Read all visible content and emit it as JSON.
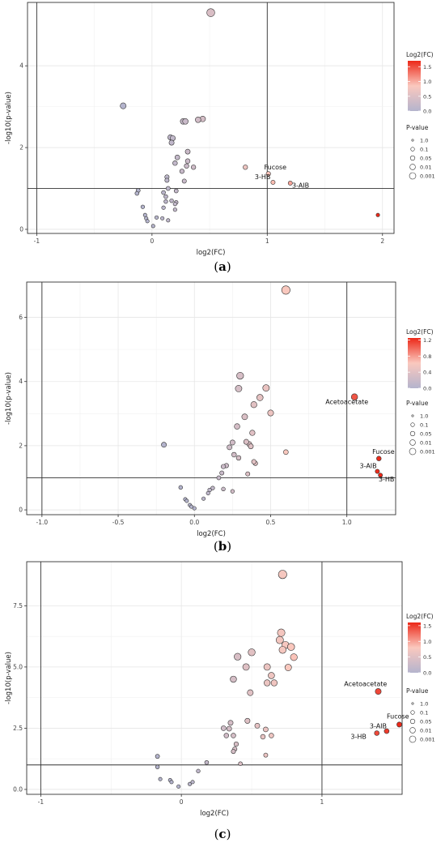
{
  "chart_data": [
    {
      "type": "scatter",
      "panel": "a",
      "caption_open": "(",
      "caption_letter": "a",
      "caption_close": ")",
      "xlabel": "log2(FC)",
      "ylabel": "-log10(p-value)",
      "xlim": [
        -1.08,
        2.1
      ],
      "ylim": [
        -0.1,
        5.55
      ],
      "xticks": [
        -1,
        0,
        1,
        2
      ],
      "xtick_labels": [
        "-1",
        "0",
        "1",
        "2"
      ],
      "yticks": [
        0,
        2,
        4
      ],
      "ytick_labels": [
        "0",
        "2",
        "4"
      ],
      "vlines": [
        -1,
        1
      ],
      "hline": 1,
      "grid": true,
      "color_max": 1.95,
      "colorbar": {
        "title": "Log2(FC)",
        "ticks": [
          0,
          0.5,
          1.0,
          1.5
        ],
        "tick_labels": [
          "0.0",
          "0.5",
          "1.0",
          "1.5"
        ],
        "max": 1.7
      },
      "size_legend": {
        "title": "P-value",
        "labels": [
          "1.0",
          "0.1",
          "0.05",
          "0.01",
          "0.001"
        ]
      },
      "points": [
        {
          "x": 0.51,
          "y": 5.3
        },
        {
          "x": -0.25,
          "y": 3.02
        },
        {
          "x": 0.44,
          "y": 2.7
        },
        {
          "x": 0.4,
          "y": 2.68
        },
        {
          "x": 0.27,
          "y": 2.64
        },
        {
          "x": 0.29,
          "y": 2.64
        },
        {
          "x": 0.16,
          "y": 2.25
        },
        {
          "x": 0.18,
          "y": 2.23
        },
        {
          "x": 0.17,
          "y": 2.12
        },
        {
          "x": 0.31,
          "y": 1.9
        },
        {
          "x": 0.22,
          "y": 1.76
        },
        {
          "x": 0.31,
          "y": 1.67
        },
        {
          "x": 0.2,
          "y": 1.62
        },
        {
          "x": 0.3,
          "y": 1.55
        },
        {
          "x": 0.36,
          "y": 1.52
        },
        {
          "x": 0.81,
          "y": 1.52
        },
        {
          "x": 0.26,
          "y": 1.42
        },
        {
          "x": 1.01,
          "y": 1.36
        },
        {
          "x": 0.13,
          "y": 1.28
        },
        {
          "x": 0.13,
          "y": 1.2
        },
        {
          "x": 1.05,
          "y": 1.15
        },
        {
          "x": 0.28,
          "y": 1.18
        },
        {
          "x": 1.2,
          "y": 1.13
        },
        {
          "x": 0.14,
          "y": 1.0
        },
        {
          "x": -0.12,
          "y": 0.95
        },
        {
          "x": 0.21,
          "y": 0.94
        },
        {
          "x": 0.1,
          "y": 0.9
        },
        {
          "x": -0.13,
          "y": 0.88
        },
        {
          "x": 0.12,
          "y": 0.8
        },
        {
          "x": 0.17,
          "y": 0.7
        },
        {
          "x": 0.12,
          "y": 0.68
        },
        {
          "x": 0.21,
          "y": 0.66
        },
        {
          "x": 0.2,
          "y": 0.62
        },
        {
          "x": -0.08,
          "y": 0.55
        },
        {
          "x": 0.1,
          "y": 0.53
        },
        {
          "x": 0.2,
          "y": 0.48
        },
        {
          "x": -0.06,
          "y": 0.35
        },
        {
          "x": -0.05,
          "y": 0.27
        },
        {
          "x": 0.04,
          "y": 0.29
        },
        {
          "x": 0.09,
          "y": 0.27
        },
        {
          "x": 0.14,
          "y": 0.22
        },
        {
          "x": -0.04,
          "y": 0.2
        },
        {
          "x": 1.96,
          "y": 0.35
        },
        {
          "x": 0.01,
          "y": 0.08
        }
      ],
      "annotations": [
        {
          "text": "Fucose",
          "x": 1.07,
          "y": 1.47
        },
        {
          "text": "3-HB",
          "x": 0.96,
          "y": 1.23
        },
        {
          "text": "3-AIB",
          "x": 1.29,
          "y": 1.02
        }
      ]
    },
    {
      "type": "scatter",
      "panel": "b",
      "caption_open": "(",
      "caption_letter": "b",
      "caption_close": ")",
      "xlabel": "log2(FC)",
      "ylabel": "-log10(p-value)",
      "xlim": [
        -1.1,
        1.32
      ],
      "ylim": [
        -0.15,
        7.1
      ],
      "xticks": [
        -1.0,
        -0.5,
        0.0,
        0.5,
        1.0
      ],
      "xtick_labels": [
        "-1.0",
        "-0.5",
        "0.0",
        "0.5",
        "1.0"
      ],
      "yticks": [
        0,
        2,
        4,
        6
      ],
      "ytick_labels": [
        "0",
        "2",
        "4",
        "6"
      ],
      "vlines": [
        -1,
        1
      ],
      "hline": 1,
      "grid": true,
      "color_max": 1.22,
      "colorbar": {
        "title": "Log2(FC)",
        "ticks": [
          0,
          0.4,
          0.8,
          1.2
        ],
        "tick_labels": [
          "0.0",
          "0.4",
          "0.8",
          "1.2"
        ],
        "max": 1.25
      },
      "size_legend": {
        "title": "P-value",
        "labels": [
          "1.0",
          "0.1",
          "0.05",
          "0.01",
          "0.001"
        ]
      },
      "points": [
        {
          "x": 0.6,
          "y": 6.85
        },
        {
          "x": 0.3,
          "y": 4.18
        },
        {
          "x": 0.47,
          "y": 3.8
        },
        {
          "x": 0.29,
          "y": 3.78
        },
        {
          "x": 0.43,
          "y": 3.5
        },
        {
          "x": 0.39,
          "y": 3.28
        },
        {
          "x": 0.5,
          "y": 3.02
        },
        {
          "x": 0.33,
          "y": 2.9
        },
        {
          "x": 0.28,
          "y": 2.6
        },
        {
          "x": 0.38,
          "y": 2.4
        },
        {
          "x": 0.23,
          "y": 1.95
        },
        {
          "x": 0.36,
          "y": 2.05
        },
        {
          "x": 0.34,
          "y": 2.12
        },
        {
          "x": 0.37,
          "y": 1.98
        },
        {
          "x": 0.6,
          "y": 1.8
        },
        {
          "x": 0.25,
          "y": 2.1
        },
        {
          "x": 0.26,
          "y": 1.72
        },
        {
          "x": 0.29,
          "y": 1.62
        },
        {
          "x": 0.4,
          "y": 1.45
        },
        {
          "x": 0.39,
          "y": 1.5
        },
        {
          "x": 0.21,
          "y": 1.38
        },
        {
          "x": 0.19,
          "y": 1.35
        },
        {
          "x": 0.18,
          "y": 1.15
        },
        {
          "x": 0.35,
          "y": 1.12
        },
        {
          "x": 0.16,
          "y": 1.0
        },
        {
          "x": 0.12,
          "y": 0.68
        },
        {
          "x": 0.1,
          "y": 0.62
        },
        {
          "x": 0.19,
          "y": 0.65
        },
        {
          "x": 0.09,
          "y": 0.52
        },
        {
          "x": 0.25,
          "y": 0.58
        },
        {
          "x": 0.06,
          "y": 0.35
        },
        {
          "x": -0.09,
          "y": 0.7
        },
        {
          "x": -0.06,
          "y": 0.33
        },
        {
          "x": -0.05,
          "y": 0.28
        },
        {
          "x": -0.03,
          "y": 0.15
        },
        {
          "x": -0.02,
          "y": 0.1
        },
        {
          "x": 0.0,
          "y": 0.05
        },
        {
          "x": -0.2,
          "y": 2.03
        },
        {
          "x": 1.05,
          "y": 3.52
        },
        {
          "x": 1.21,
          "y": 1.6
        },
        {
          "x": 1.2,
          "y": 1.2
        },
        {
          "x": 1.22,
          "y": 1.08
        }
      ],
      "annotations": [
        {
          "text": "Acetoacetate",
          "x": 1.0,
          "y": 3.3
        },
        {
          "text": "Fucose",
          "x": 1.24,
          "y": 1.75
        },
        {
          "text": "3-AIB",
          "x": 1.14,
          "y": 1.3
        },
        {
          "text": "3-HB",
          "x": 1.26,
          "y": 0.88
        }
      ]
    },
    {
      "type": "scatter",
      "panel": "c",
      "caption_open": "(",
      "caption_letter": "c",
      "caption_close": ")",
      "xlabel": "log2(FC)",
      "ylabel": "-log10(p-value)",
      "xlim": [
        -1.1,
        1.57
      ],
      "ylim": [
        -0.2,
        9.3
      ],
      "xticks": [
        -1,
        0,
        1
      ],
      "xtick_labels": [
        "-1",
        "0",
        "1"
      ],
      "yticks": [
        0,
        2.5,
        5,
        7.5
      ],
      "ytick_labels": [
        "0.0",
        "2.5",
        "5.0",
        "7.5"
      ],
      "vlines": [
        -1,
        1
      ],
      "hline": 1,
      "grid": true,
      "color_max": 1.55,
      "colorbar": {
        "title": "Log2(FC)",
        "ticks": [
          0,
          0.5,
          1.0,
          1.5
        ],
        "tick_labels": [
          "0.0",
          "0.5",
          "1.0",
          "1.5"
        ],
        "max": 1.6
      },
      "size_legend": {
        "title": "P-value",
        "labels": [
          "1.0",
          "0.1",
          "0.05",
          "0.01",
          "0.001"
        ]
      },
      "points": [
        {
          "x": 0.72,
          "y": 8.78
        },
        {
          "x": 0.71,
          "y": 6.4
        },
        {
          "x": 0.7,
          "y": 6.1
        },
        {
          "x": 0.74,
          "y": 5.9
        },
        {
          "x": 0.78,
          "y": 5.82
        },
        {
          "x": 0.72,
          "y": 5.7
        },
        {
          "x": 0.5,
          "y": 5.6
        },
        {
          "x": 0.8,
          "y": 5.4
        },
        {
          "x": 0.4,
          "y": 5.42
        },
        {
          "x": 0.61,
          "y": 5.0
        },
        {
          "x": 0.46,
          "y": 5.0
        },
        {
          "x": 0.76,
          "y": 4.98
        },
        {
          "x": 0.64,
          "y": 4.65
        },
        {
          "x": 0.37,
          "y": 4.5
        },
        {
          "x": 0.61,
          "y": 4.35
        },
        {
          "x": 0.66,
          "y": 4.35
        },
        {
          "x": 0.49,
          "y": 3.95
        },
        {
          "x": 0.47,
          "y": 2.8
        },
        {
          "x": 0.35,
          "y": 2.72
        },
        {
          "x": 0.54,
          "y": 2.6
        },
        {
          "x": 0.3,
          "y": 2.5
        },
        {
          "x": 0.34,
          "y": 2.48
        },
        {
          "x": 0.6,
          "y": 2.45
        },
        {
          "x": 0.37,
          "y": 2.2
        },
        {
          "x": 0.32,
          "y": 2.2
        },
        {
          "x": 0.64,
          "y": 2.2
        },
        {
          "x": 0.58,
          "y": 2.15
        },
        {
          "x": 0.39,
          "y": 1.85
        },
        {
          "x": 0.38,
          "y": 1.65
        },
        {
          "x": 0.37,
          "y": 1.55
        },
        {
          "x": 0.6,
          "y": 1.4
        },
        {
          "x": 0.18,
          "y": 1.1
        },
        {
          "x": 0.42,
          "y": 1.05
        },
        {
          "x": -0.17,
          "y": 1.35
        },
        {
          "x": -0.17,
          "y": 0.92
        },
        {
          "x": 0.12,
          "y": 0.75
        },
        {
          "x": -0.15,
          "y": 0.42
        },
        {
          "x": -0.08,
          "y": 0.38
        },
        {
          "x": -0.07,
          "y": 0.3
        },
        {
          "x": -0.02,
          "y": 0.12
        },
        {
          "x": 0.06,
          "y": 0.22
        },
        {
          "x": 0.08,
          "y": 0.3
        },
        {
          "x": 1.4,
          "y": 4.0
        },
        {
          "x": 1.55,
          "y": 2.65
        },
        {
          "x": 1.46,
          "y": 2.38
        },
        {
          "x": 1.39,
          "y": 2.3
        }
      ],
      "annotations": [
        {
          "text": "Acetoacetate",
          "x": 1.31,
          "y": 4.22
        },
        {
          "text": "Fucose",
          "x": 1.54,
          "y": 2.9
        },
        {
          "text": "3-AIB",
          "x": 1.4,
          "y": 2.5
        },
        {
          "text": "3-HB",
          "x": 1.26,
          "y": 2.07
        }
      ]
    }
  ]
}
